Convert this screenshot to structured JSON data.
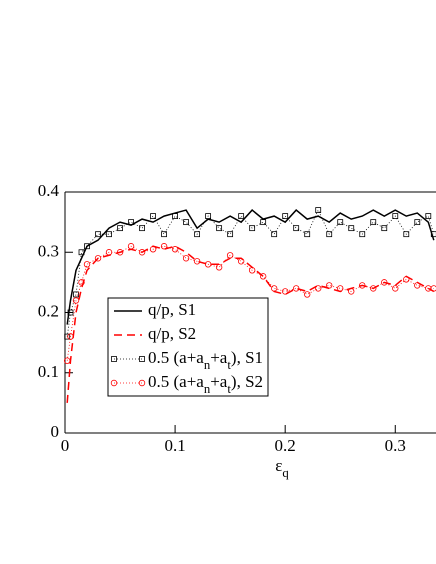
{
  "chart_data": {
    "type": "line",
    "x_label": "ε_q",
    "x": [
      0.002,
      0.005,
      0.01,
      0.015,
      0.02,
      0.03,
      0.04,
      0.05,
      0.06,
      0.07,
      0.08,
      0.09,
      0.1,
      0.11,
      0.12,
      0.13,
      0.14,
      0.15,
      0.16,
      0.17,
      0.18,
      0.19,
      0.2,
      0.21,
      0.22,
      0.23,
      0.24,
      0.25,
      0.26,
      0.27,
      0.28,
      0.29,
      0.3,
      0.31,
      0.32,
      0.33,
      0.335
    ],
    "series": [
      {
        "name": "q/p, S1",
        "color": "#000000",
        "style": "solid",
        "marker": "none",
        "values": [
          0.18,
          0.22,
          0.27,
          0.29,
          0.31,
          0.32,
          0.34,
          0.35,
          0.345,
          0.355,
          0.35,
          0.36,
          0.365,
          0.37,
          0.34,
          0.355,
          0.35,
          0.36,
          0.35,
          0.37,
          0.355,
          0.36,
          0.35,
          0.37,
          0.355,
          0.36,
          0.35,
          0.365,
          0.355,
          0.36,
          0.37,
          0.36,
          0.37,
          0.36,
          0.365,
          0.35,
          0.32
        ]
      },
      {
        "name": "q/p, S2",
        "color": "#ff0000",
        "style": "dashed",
        "marker": "none",
        "values": [
          0.05,
          0.12,
          0.2,
          0.24,
          0.27,
          0.29,
          0.295,
          0.3,
          0.305,
          0.3,
          0.31,
          0.305,
          0.31,
          0.3,
          0.285,
          0.28,
          0.28,
          0.29,
          0.29,
          0.275,
          0.26,
          0.235,
          0.23,
          0.24,
          0.235,
          0.245,
          0.24,
          0.235,
          0.24,
          0.245,
          0.24,
          0.25,
          0.245,
          0.26,
          0.25,
          0.24,
          0.235
        ]
      },
      {
        "name": "0.5 (a+a_n+a_t), S1",
        "color": "#000000",
        "style": "dotted",
        "marker": "square",
        "values": [
          0.16,
          0.2,
          0.23,
          0.3,
          0.31,
          0.33,
          0.33,
          0.34,
          0.35,
          0.34,
          0.36,
          0.33,
          0.36,
          0.35,
          0.33,
          0.36,
          0.34,
          0.33,
          0.36,
          0.34,
          0.35,
          0.33,
          0.36,
          0.34,
          0.33,
          0.37,
          0.33,
          0.35,
          0.34,
          0.33,
          0.35,
          0.34,
          0.36,
          0.33,
          0.35,
          0.36,
          0.33
        ]
      },
      {
        "name": "0.5 (a+a_n+a_t), S2",
        "color": "#ff0000",
        "style": "dotted",
        "marker": "circle",
        "values": [
          0.12,
          0.16,
          0.22,
          0.25,
          0.28,
          0.29,
          0.3,
          0.3,
          0.31,
          0.3,
          0.305,
          0.31,
          0.305,
          0.29,
          0.285,
          0.28,
          0.275,
          0.295,
          0.285,
          0.27,
          0.26,
          0.24,
          0.235,
          0.24,
          0.23,
          0.24,
          0.245,
          0.24,
          0.235,
          0.245,
          0.24,
          0.25,
          0.24,
          0.255,
          0.245,
          0.24,
          0.24
        ]
      }
    ],
    "xlim": [
      0,
      0.337
    ],
    "ylim": [
      0,
      0.4
    ],
    "xticks": [
      0,
      0.1,
      0.2,
      0.3
    ],
    "yticks": [
      0,
      0.1,
      0.2,
      0.3,
      0.4
    ],
    "legend": "lower left"
  }
}
